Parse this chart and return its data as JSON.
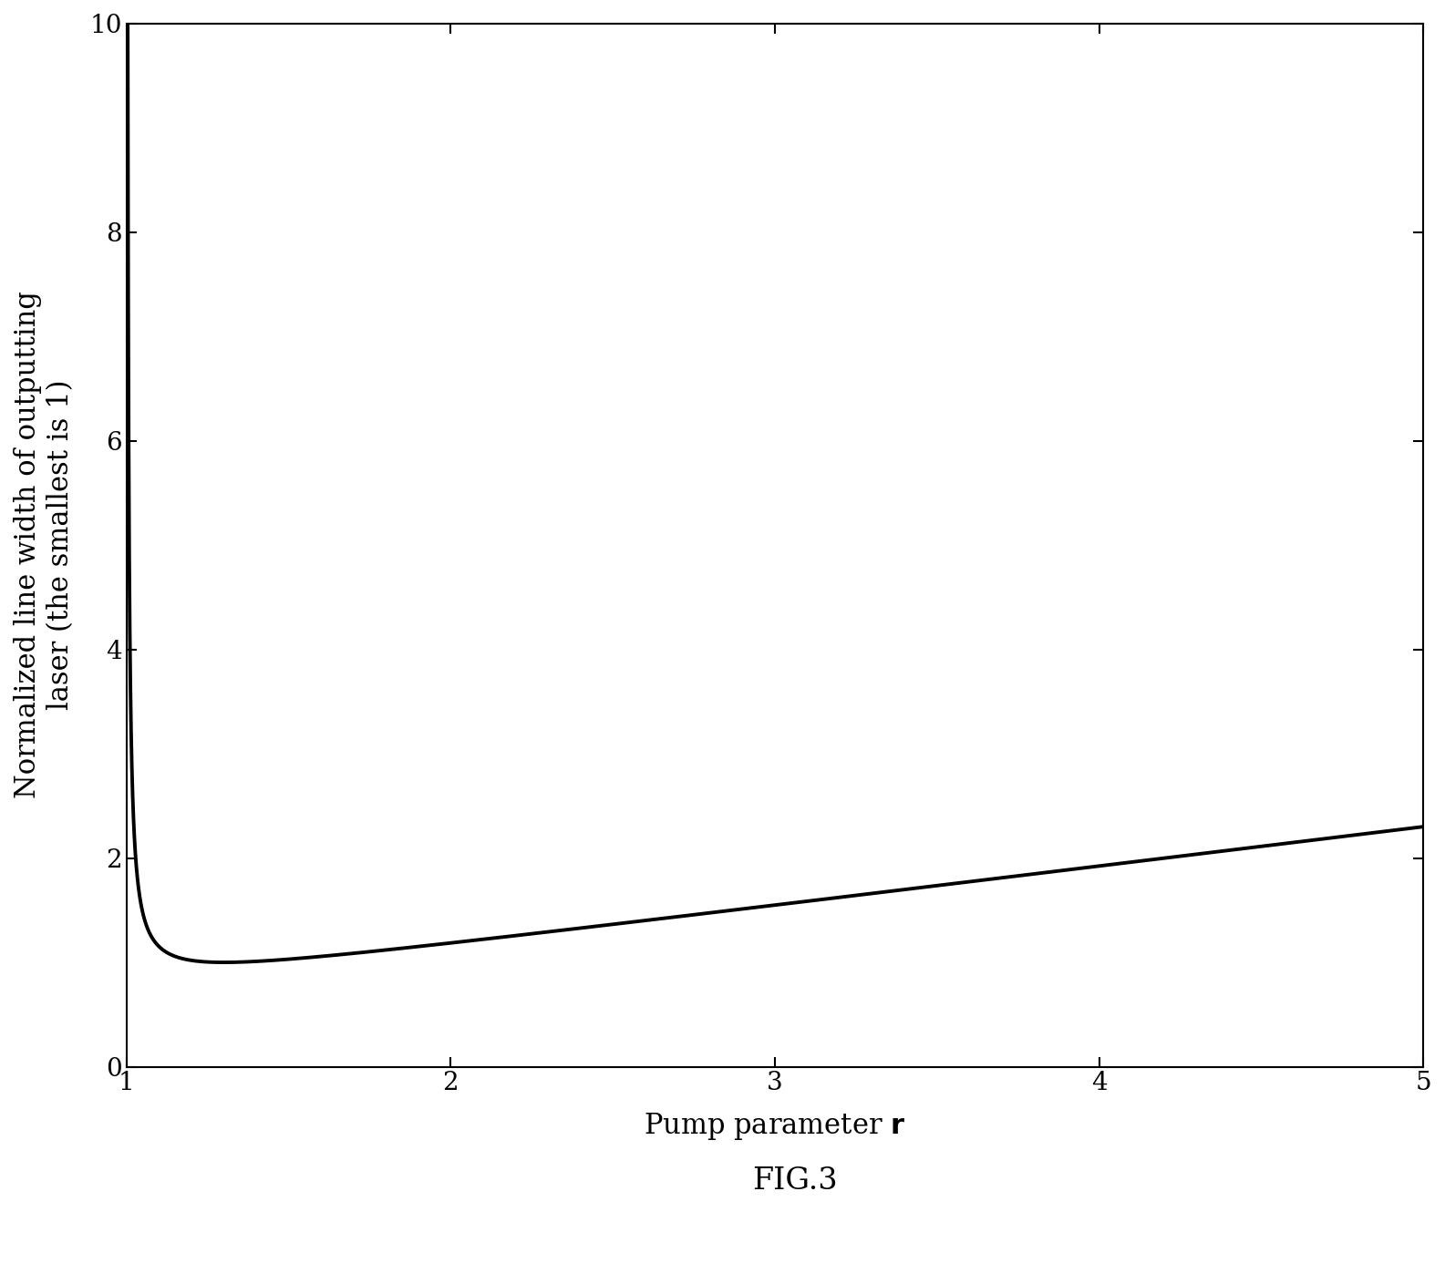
{
  "xlabel": "Pump parameter r",
  "ylabel_line1": "Normalized line width of outputting",
  "ylabel_line2": "laser (the smallest is 1)",
  "fig_label": "FIG.3",
  "r_start": 1.002,
  "r_end": 5.0,
  "x_ticks": [
    1,
    2,
    3,
    4,
    5
  ],
  "y_ticks": [
    0,
    2,
    4,
    6,
    8,
    10
  ],
  "xlim": [
    1.0,
    5.0
  ],
  "ylim": [
    0,
    10
  ],
  "line_color": "#000000",
  "line_width": 2.8,
  "background_color": "#ffffff",
  "font_family": "serif",
  "label_fontsize": 22,
  "tick_fontsize": 20,
  "fig_label_fontsize": 24,
  "n_points": 8000
}
